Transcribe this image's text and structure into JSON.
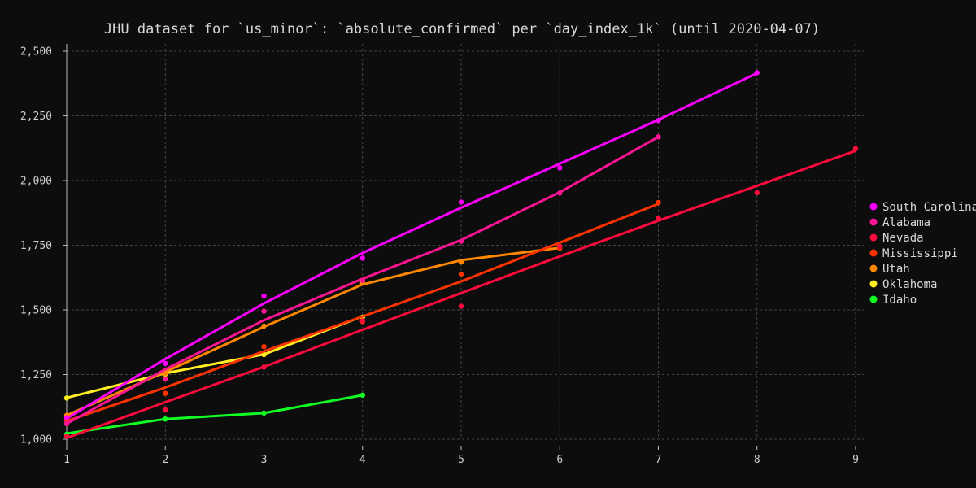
{
  "chart_data": {
    "type": "scatter",
    "title": "JHU dataset for `us_minor`: `absolute_confirmed` per `day_index_1k` (until 2020-04-07)",
    "xlabel": "",
    "ylabel": "",
    "xlim": [
      1,
      9
    ],
    "ylim": [
      1000,
      2500
    ],
    "x_ticks": [
      1,
      2,
      3,
      4,
      5,
      6,
      7,
      8,
      9
    ],
    "y_ticks": [
      1000,
      1250,
      1500,
      1750,
      2000,
      2250,
      2500
    ],
    "grid": true,
    "legend_position": "right",
    "series": [
      {
        "name": "South Carolina",
        "color": "#ff00ff",
        "points": [
          [
            1,
            1083
          ],
          [
            2,
            1293
          ],
          [
            3,
            1554
          ],
          [
            4,
            1700
          ],
          [
            5,
            1917
          ],
          [
            6,
            2049
          ],
          [
            7,
            2232
          ],
          [
            8,
            2417
          ]
        ],
        "line": [
          [
            1,
            1080
          ],
          [
            2,
            1310
          ],
          [
            3,
            1525
          ],
          [
            4,
            1720
          ],
          [
            5,
            1895
          ],
          [
            6,
            2065
          ],
          [
            7,
            2235
          ],
          [
            8,
            2415
          ]
        ]
      },
      {
        "name": "Alabama",
        "color": "#ff1493",
        "points": [
          [
            1,
            1060
          ],
          [
            2,
            1233
          ],
          [
            3,
            1495
          ],
          [
            4,
            1614
          ],
          [
            5,
            1765
          ],
          [
            6,
            1952
          ],
          [
            7,
            2169
          ]
        ],
        "line": [
          [
            1,
            1060
          ],
          [
            2,
            1270
          ],
          [
            3,
            1460
          ],
          [
            4,
            1620
          ],
          [
            5,
            1770
          ],
          [
            6,
            1955
          ],
          [
            7,
            2169
          ]
        ]
      },
      {
        "name": "Nevada",
        "color": "#ff0a3c",
        "points": [
          [
            1,
            1012
          ],
          [
            2,
            1113
          ],
          [
            3,
            1279
          ],
          [
            4,
            1458
          ],
          [
            5,
            1514
          ],
          [
            6,
            1745
          ],
          [
            7,
            1855
          ],
          [
            8,
            1953
          ],
          [
            9,
            2124
          ]
        ],
        "line": [
          [
            1,
            1005
          ],
          [
            2,
            1143
          ],
          [
            3,
            1280
          ],
          [
            4,
            1423
          ],
          [
            5,
            1565
          ],
          [
            6,
            1707
          ],
          [
            7,
            1845
          ],
          [
            8,
            1980
          ],
          [
            9,
            2115
          ]
        ]
      },
      {
        "name": "Mississippi",
        "color": "#ff3300",
        "points": [
          [
            1,
            1073
          ],
          [
            2,
            1177
          ],
          [
            3,
            1358
          ],
          [
            4,
            1455
          ],
          [
            5,
            1638
          ],
          [
            6,
            1738
          ],
          [
            7,
            1915
          ]
        ],
        "line": [
          [
            1,
            1070
          ],
          [
            2,
            1200
          ],
          [
            3,
            1340
          ],
          [
            4,
            1475
          ],
          [
            5,
            1610
          ],
          [
            6,
            1760
          ],
          [
            7,
            1910
          ]
        ]
      },
      {
        "name": "Utah",
        "color": "#ff8800",
        "points": [
          [
            1,
            1092
          ],
          [
            2,
            1255
          ],
          [
            3,
            1437
          ],
          [
            4,
            1605
          ],
          [
            5,
            1685
          ],
          [
            6,
            1746
          ]
        ],
        "line": [
          [
            1,
            1092
          ],
          [
            2,
            1260
          ],
          [
            3,
            1435
          ],
          [
            4,
            1598
          ],
          [
            5,
            1692
          ],
          [
            6,
            1740
          ]
        ]
      },
      {
        "name": "Oklahoma",
        "color": "#ffee22",
        "points": [
          [
            1,
            1159
          ],
          [
            2,
            1252
          ],
          [
            3,
            1327
          ],
          [
            4,
            1472
          ]
        ],
        "line": [
          [
            1,
            1160
          ],
          [
            2,
            1255
          ],
          [
            3,
            1328
          ],
          [
            4,
            1475
          ]
        ]
      },
      {
        "name": "Idaho",
        "color": "#11ff22",
        "points": [
          [
            1,
            1019
          ],
          [
            2,
            1078
          ],
          [
            3,
            1101
          ],
          [
            4,
            1170
          ]
        ],
        "line": [
          [
            1,
            1022
          ],
          [
            2,
            1078
          ],
          [
            3,
            1101
          ],
          [
            4,
            1170
          ]
        ]
      }
    ]
  }
}
